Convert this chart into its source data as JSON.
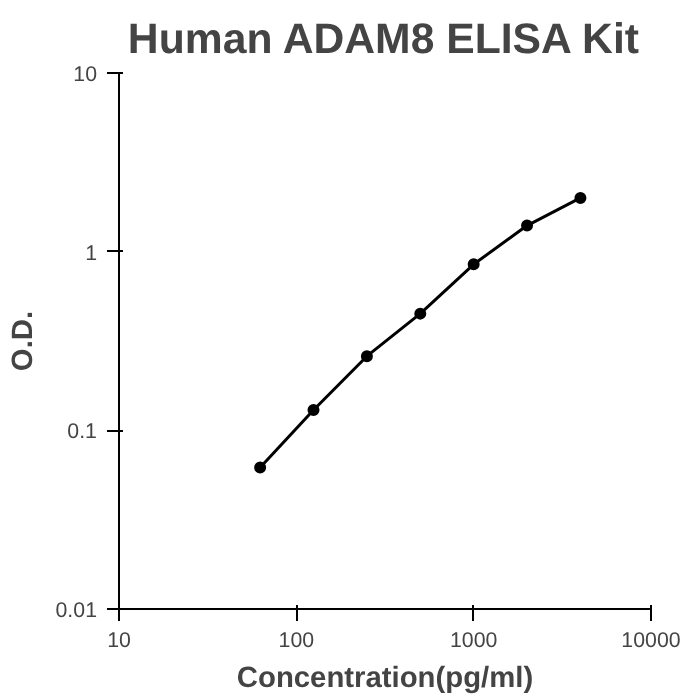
{
  "chart_data": {
    "type": "line",
    "title": "Human ADAM8 ELISA Kit",
    "xlabel": "Concentration(pg/ml)",
    "ylabel": "O.D.",
    "log": "xy",
    "xlim": [
      10,
      10000
    ],
    "ylim": [
      0.01,
      10
    ],
    "xticks": [
      10,
      100,
      1000,
      10000
    ],
    "yticks": [
      0.01,
      0.1,
      1,
      10
    ],
    "grid": false,
    "marker": "circle",
    "line_style": "solid",
    "x": [
      62.5,
      125,
      250,
      500,
      1000,
      2000,
      4000
    ],
    "series": [
      {
        "color": "#000000",
        "values": [
          0.062,
          0.13,
          0.26,
          0.45,
          0.85,
          1.4,
          2.0
        ]
      }
    ]
  }
}
